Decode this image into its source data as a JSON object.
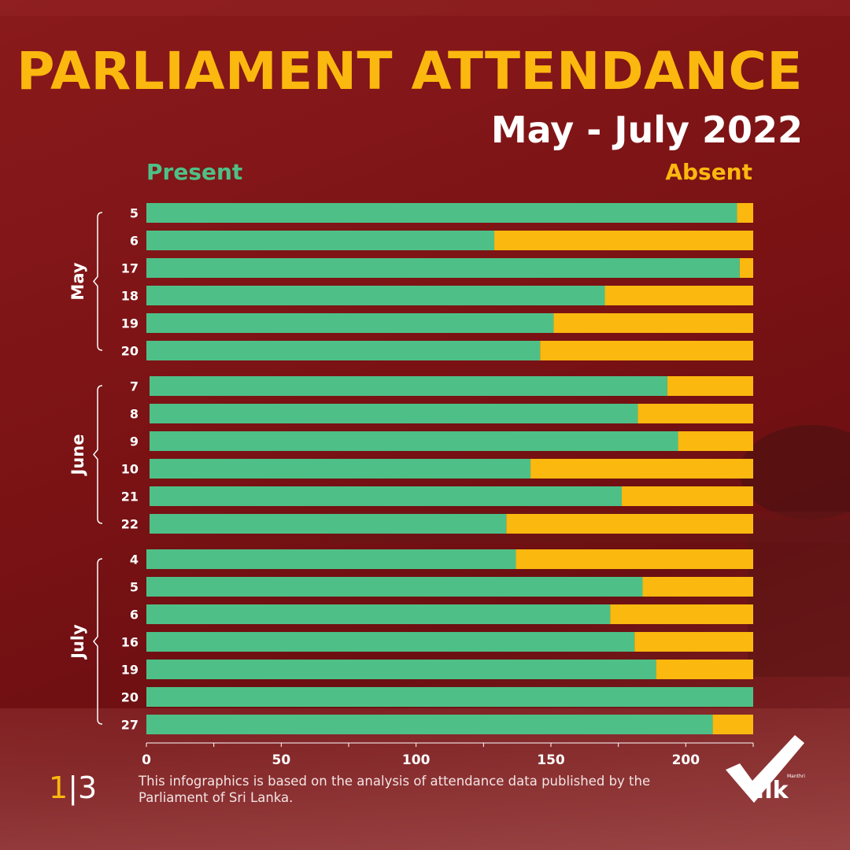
{
  "title": "PARLIAMENT ATTENDANCE",
  "subtitle": "May - July 2022",
  "legend": {
    "present": "Present",
    "absent": "Absent"
  },
  "colors": {
    "present": "#4ec087",
    "absent": "#fbb80f",
    "title": "#fbb80f",
    "background": "#7a1214"
  },
  "page": {
    "current": "1",
    "separator": "|",
    "total": "3"
  },
  "footnote": "This infographics is based on the analysis of attendance data published by the Parliament of Sri Lanka.",
  "logo": {
    "text": ".lk",
    "small": "Manthri"
  },
  "chart_data": {
    "type": "bar",
    "orientation": "horizontal",
    "stacked": true,
    "xlim": [
      0,
      225
    ],
    "x_ticks": [
      0,
      50,
      100,
      150,
      200
    ],
    "grid": false,
    "legend_placement": "top",
    "groups": [
      {
        "label": "May",
        "days": [
          "5",
          "6",
          "17",
          "18",
          "19",
          "20"
        ]
      },
      {
        "label": "June",
        "days": [
          "7",
          "8",
          "9",
          "10",
          "21",
          "22"
        ]
      },
      {
        "label": "July",
        "days": [
          "4",
          "5",
          "6",
          "16",
          "19",
          "20",
          "27"
        ]
      }
    ],
    "series": [
      {
        "name": "Present",
        "values": [
          219,
          129,
          220,
          170,
          151,
          146,
          193,
          182,
          197,
          142,
          176,
          133,
          137,
          184,
          172,
          181,
          189,
          225,
          210
        ]
      },
      {
        "name": "Absent",
        "values": [
          6,
          96,
          5,
          55,
          74,
          79,
          32,
          43,
          28,
          83,
          49,
          92,
          88,
          41,
          53,
          44,
          36,
          0,
          15
        ]
      }
    ]
  }
}
